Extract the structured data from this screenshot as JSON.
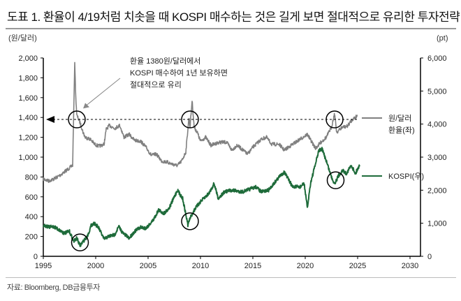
{
  "title": "도표 1. 환율이 4/19처럼 치솟을 때 KOSPI 매수하는 것은 길게 보면 절대적으로 유리한 투자전략",
  "source": "자료: Bloomberg, DB금융투자",
  "chart_data": {
    "type": "line",
    "title": "",
    "xlim": [
      1995,
      2031
    ],
    "x_ticks": [
      "1995",
      "2000",
      "2005",
      "2010",
      "2015",
      "2020",
      "2025",
      "2030"
    ],
    "y_left": {
      "unit_label": "(원/달러)",
      "lim": [
        0,
        2000
      ],
      "ticks": [
        "0",
        "200",
        "400",
        "600",
        "800",
        "1,000",
        "1,200",
        "1,400",
        "1,600",
        "1,800",
        "2,000"
      ]
    },
    "y_right": {
      "unit_label": "(pt)",
      "lim": [
        0,
        6000
      ],
      "ticks": [
        "0",
        "1,000",
        "2,000",
        "3,000",
        "4,000",
        "5,000",
        "6,000"
      ]
    },
    "grid": false,
    "legend_position": "right",
    "series": [
      {
        "name_line1": "원/달러",
        "name_line2": "환율(좌)",
        "axis": "left",
        "color": "#808080",
        "points": [
          [
            1995.0,
            780
          ],
          [
            1995.5,
            760
          ],
          [
            1996.0,
            780
          ],
          [
            1996.5,
            810
          ],
          [
            1997.0,
            850
          ],
          [
            1997.5,
            890
          ],
          [
            1997.8,
            920
          ],
          [
            1997.95,
            1700
          ],
          [
            1998.0,
            1960
          ],
          [
            1998.1,
            1600
          ],
          [
            1998.2,
            1420
          ],
          [
            1998.5,
            1350
          ],
          [
            1998.8,
            1250
          ],
          [
            1999.0,
            1200
          ],
          [
            1999.5,
            1180
          ],
          [
            1999.9,
            1130
          ],
          [
            2000.3,
            1110
          ],
          [
            2000.8,
            1130
          ],
          [
            2001.0,
            1280
          ],
          [
            2001.3,
            1320
          ],
          [
            2001.8,
            1290
          ],
          [
            2002.3,
            1320
          ],
          [
            2002.7,
            1200
          ],
          [
            2003.2,
            1230
          ],
          [
            2003.7,
            1170
          ],
          [
            2004.3,
            1160
          ],
          [
            2004.8,
            1100
          ],
          [
            2005.3,
            1020
          ],
          [
            2005.8,
            1030
          ],
          [
            2006.3,
            960
          ],
          [
            2006.8,
            950
          ],
          [
            2007.3,
            930
          ],
          [
            2007.8,
            915
          ],
          [
            2008.2,
            960
          ],
          [
            2008.6,
            1050
          ],
          [
            2008.9,
            1400
          ],
          [
            2009.0,
            1300
          ],
          [
            2009.2,
            1570
          ],
          [
            2009.4,
            1300
          ],
          [
            2009.7,
            1250
          ],
          [
            2010.0,
            1160
          ],
          [
            2010.5,
            1200
          ],
          [
            2011.0,
            1120
          ],
          [
            2011.8,
            1150
          ],
          [
            2012.5,
            1150
          ],
          [
            2013.0,
            1070
          ],
          [
            2013.5,
            1120
          ],
          [
            2014.5,
            1030
          ],
          [
            2015.0,
            1100
          ],
          [
            2015.8,
            1180
          ],
          [
            2016.3,
            1200
          ],
          [
            2016.8,
            1130
          ],
          [
            2017.5,
            1130
          ],
          [
            2018.0,
            1070
          ],
          [
            2018.8,
            1130
          ],
          [
            2019.5,
            1180
          ],
          [
            2020.2,
            1230
          ],
          [
            2020.8,
            1120
          ],
          [
            2021.0,
            1090
          ],
          [
            2021.5,
            1150
          ],
          [
            2022.0,
            1200
          ],
          [
            2022.5,
            1300
          ],
          [
            2022.8,
            1440
          ],
          [
            2023.0,
            1250
          ],
          [
            2023.5,
            1300
          ],
          [
            2024.0,
            1310
          ],
          [
            2024.5,
            1380
          ],
          [
            2025.0,
            1420
          ]
        ]
      },
      {
        "name": "KOSPI(우)",
        "axis": "right",
        "color": "#1e6b3a",
        "points": [
          [
            1995.0,
            950
          ],
          [
            1995.5,
            880
          ],
          [
            1996.0,
            900
          ],
          [
            1996.5,
            800
          ],
          [
            1997.0,
            700
          ],
          [
            1997.5,
            750
          ],
          [
            1997.9,
            450
          ],
          [
            1998.2,
            550
          ],
          [
            1998.5,
            320
          ],
          [
            1998.8,
            450
          ],
          [
            1999.2,
            600
          ],
          [
            1999.6,
            950
          ],
          [
            1999.9,
            1000
          ],
          [
            2000.3,
            850
          ],
          [
            2000.8,
            520
          ],
          [
            2001.2,
            600
          ],
          [
            2001.8,
            650
          ],
          [
            2002.2,
            900
          ],
          [
            2002.6,
            700
          ],
          [
            2003.2,
            550
          ],
          [
            2003.7,
            750
          ],
          [
            2004.3,
            880
          ],
          [
            2004.8,
            850
          ],
          [
            2005.5,
            1100
          ],
          [
            2006.0,
            1400
          ],
          [
            2006.5,
            1300
          ],
          [
            2007.0,
            1450
          ],
          [
            2007.8,
            2000
          ],
          [
            2008.3,
            1750
          ],
          [
            2008.8,
            950
          ],
          [
            2009.0,
            1150
          ],
          [
            2009.5,
            1450
          ],
          [
            2010.0,
            1650
          ],
          [
            2010.8,
            1900
          ],
          [
            2011.3,
            2200
          ],
          [
            2011.7,
            1750
          ],
          [
            2012.3,
            1950
          ],
          [
            2013.0,
            2000
          ],
          [
            2014.0,
            1950
          ],
          [
            2015.3,
            2100
          ],
          [
            2015.8,
            1950
          ],
          [
            2016.5,
            2000
          ],
          [
            2017.5,
            2400
          ],
          [
            2018.0,
            2550
          ],
          [
            2018.8,
            2100
          ],
          [
            2019.5,
            2100
          ],
          [
            2019.9,
            2200
          ],
          [
            2020.2,
            1450
          ],
          [
            2020.5,
            2200
          ],
          [
            2020.9,
            2700
          ],
          [
            2021.3,
            3200
          ],
          [
            2021.6,
            3250
          ],
          [
            2022.0,
            2900
          ],
          [
            2022.5,
            2400
          ],
          [
            2022.8,
            2200
          ],
          [
            2023.2,
            2450
          ],
          [
            2023.6,
            2600
          ],
          [
            2023.9,
            2500
          ],
          [
            2024.4,
            2750
          ],
          [
            2024.8,
            2500
          ],
          [
            2025.0,
            2650
          ],
          [
            2025.2,
            2750
          ]
        ]
      }
    ],
    "reference_line": {
      "value": 1380,
      "axis": "left",
      "style": "dashed",
      "arrow": "left"
    },
    "highlight_circles": [
      {
        "x": 1998.2,
        "y": 1380,
        "axis": "left"
      },
      {
        "x": 2009.0,
        "y": 1380,
        "axis": "left"
      },
      {
        "x": 2022.8,
        "y": 1380,
        "axis": "left"
      },
      {
        "x": 1998.5,
        "y": 420,
        "axis": "right"
      },
      {
        "x": 2009.0,
        "y": 1060,
        "axis": "right"
      },
      {
        "x": 2022.9,
        "y": 2300,
        "axis": "right"
      }
    ],
    "annotation": {
      "lines": [
        "환율 1380원/달러에서",
        "KOSPI 매수하여 1년 보유하면",
        "절대적으로 유리"
      ],
      "points_to": [
        1998.8,
        1490
      ]
    }
  }
}
